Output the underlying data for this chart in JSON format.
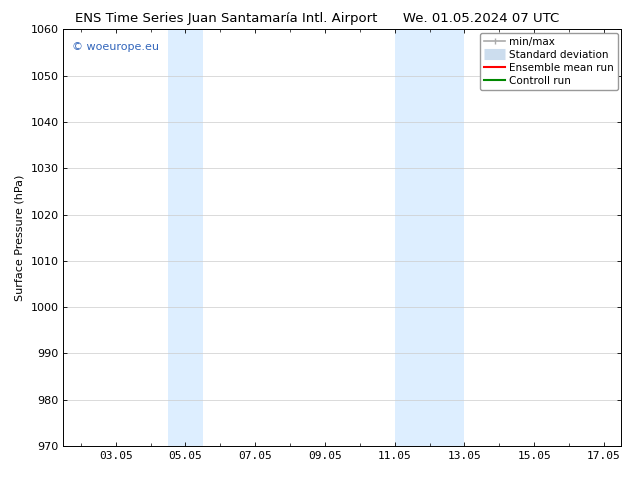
{
  "title_left": "ENS Time Series Juan Santamaría Intl. Airport",
  "title_right": "We. 01.05.2024 07 UTC",
  "ylabel": "Surface Pressure (hPa)",
  "ylim": [
    970,
    1060
  ],
  "yticks": [
    970,
    980,
    990,
    1000,
    1010,
    1020,
    1030,
    1040,
    1050,
    1060
  ],
  "xlim_start": 1.5,
  "xlim_end": 17.5,
  "xtick_labels": [
    "03.05",
    "05.05",
    "07.05",
    "09.05",
    "11.05",
    "13.05",
    "15.05",
    "17.05"
  ],
  "xtick_positions": [
    3,
    5,
    7,
    9,
    11,
    13,
    15,
    17
  ],
  "shaded_bands": [
    {
      "x_start": 4.5,
      "x_end": 5.5
    },
    {
      "x_start": 11.0,
      "x_end": 13.0
    }
  ],
  "shaded_color": "#ddeeff",
  "watermark_text": "© woeurope.eu",
  "watermark_color": "#3366bb",
  "legend_entries": [
    {
      "label": "min/max",
      "color": "#aaaaaa",
      "lw": 1.2,
      "type": "hbar"
    },
    {
      "label": "Standard deviation",
      "color": "#ccddee",
      "lw": 8,
      "type": "thick"
    },
    {
      "label": "Ensemble mean run",
      "color": "#ff0000",
      "lw": 1.5,
      "type": "line"
    },
    {
      "label": "Controll run",
      "color": "#008800",
      "lw": 1.5,
      "type": "line"
    }
  ],
  "background_color": "#ffffff",
  "title_fontsize": 9.5,
  "axis_label_fontsize": 8,
  "tick_fontsize": 8,
  "legend_fontsize": 7.5
}
